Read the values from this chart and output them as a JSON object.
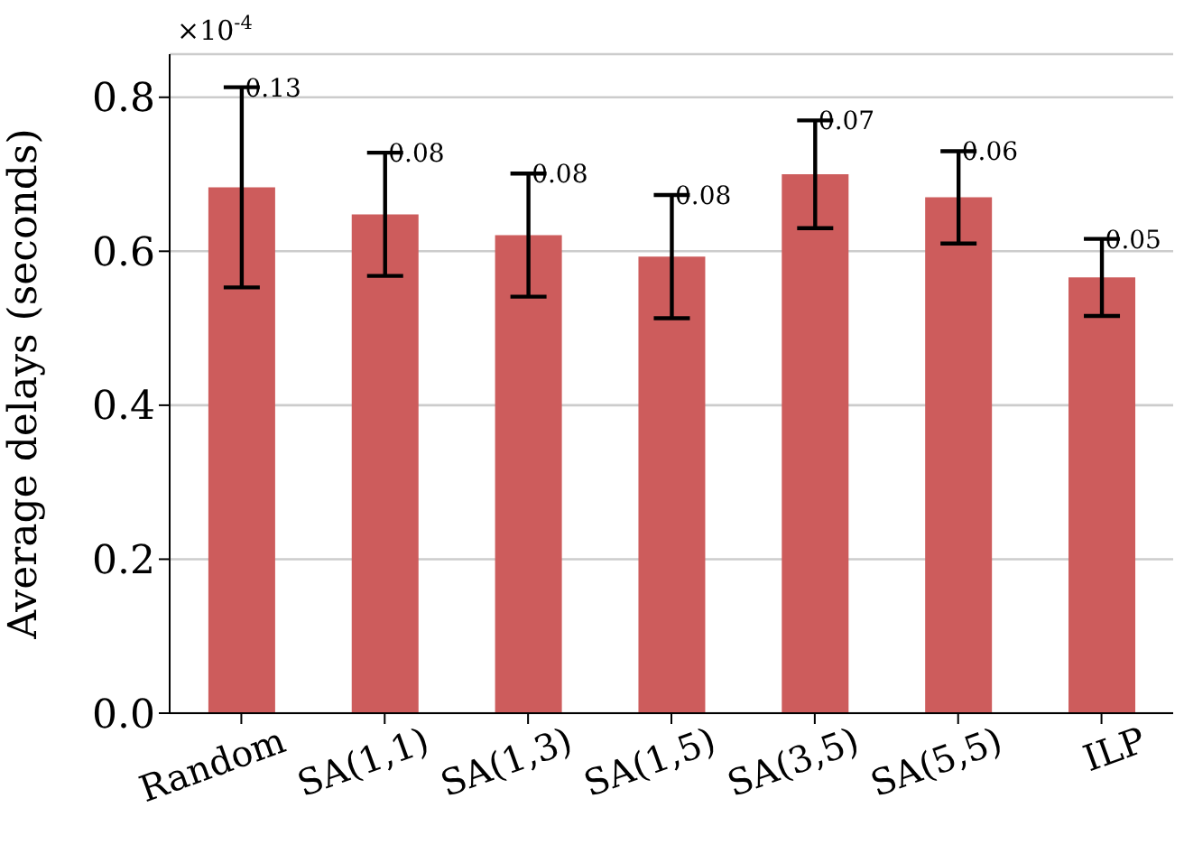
{
  "chart_data": {
    "type": "bar",
    "ylabel": "Average delays (seconds)",
    "categories": [
      "Random",
      "SA(1,1)",
      "SA(1,3)",
      "SA(1,5)",
      "SA(3,5)",
      "SA(5,5)",
      "ILP"
    ],
    "values": [
      0.683,
      0.648,
      0.621,
      0.593,
      0.7,
      0.67,
      0.566
    ],
    "errors": [
      0.13,
      0.08,
      0.08,
      0.08,
      0.07,
      0.06,
      0.05
    ],
    "color": "#cd5c5c",
    "ylim": [
      0,
      0.856
    ],
    "yticks": [
      {
        "value": 0,
        "label": "0.0"
      },
      {
        "value": 0.2,
        "label": "0.2"
      },
      {
        "value": 0.4,
        "label": "0.4"
      },
      {
        "value": 0.6,
        "label": "0.6"
      },
      {
        "value": 0.8,
        "label": "0.8"
      }
    ],
    "grid": "y",
    "annotations": [
      "×10$^{-4}$",
      {
        "text": "0.13",
        "x": "Random",
        "y": 0.813
      },
      {
        "text": "0.08",
        "x": "SA(1,1)",
        "y": 0.728
      },
      {
        "text": "0.08",
        "x": "SA(1,3)",
        "y": 0.701
      },
      {
        "text": "0.08",
        "x": "SA(1,5)",
        "y": 0.673
      },
      {
        "text": "0.07",
        "x": "SA(3,5)",
        "y": 0.77
      },
      {
        "text": "0.06",
        "x": "SA(5,5)",
        "y": 0.73
      },
      {
        "text": "0.05",
        "x": "ILP",
        "y": 0.616
      }
    ]
  }
}
